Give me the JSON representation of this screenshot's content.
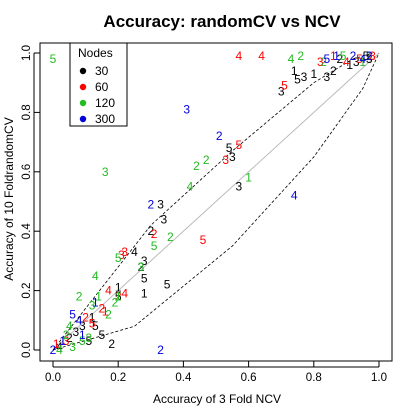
{
  "chart_data": {
    "type": "scatter",
    "title": "Accuracy: randomCV vs NCV",
    "xlabel": "Accuracy of 3 Fold NCV",
    "ylabel": "Accuracy of 10 FoldrandomCV",
    "xlim": [
      0,
      1
    ],
    "ylim": [
      0,
      1
    ],
    "xticks": [
      "0.0",
      "0.2",
      "0.4",
      "0.6",
      "0.8",
      "1.0"
    ],
    "yticks": [
      "0.0",
      "0.2",
      "0.4",
      "0.6",
      "0.8",
      "1.0"
    ],
    "grid": false,
    "marker": "text digit (1-5)",
    "reference_line": {
      "style": "solid",
      "color": "#bbbbbb",
      "from": [
        0,
        0
      ],
      "to": [
        1,
        1
      ]
    },
    "bounds": {
      "style": "dashed",
      "upper": [
        [
          0,
          0
        ],
        [
          0.3,
          0.42
        ],
        [
          0.55,
          0.67
        ],
        [
          0.8,
          0.9
        ],
        [
          0.92,
          0.98
        ],
        [
          0.98,
          1.0
        ]
      ],
      "lower": [
        [
          0,
          0
        ],
        [
          0.25,
          0.08
        ],
        [
          0.55,
          0.35
        ],
        [
          0.8,
          0.65
        ],
        [
          0.95,
          0.88
        ],
        [
          1.0,
          1.0
        ]
      ]
    },
    "legend": {
      "title": "Nodes",
      "placement": "top-left",
      "entries": [
        "30",
        "60",
        "120",
        "300"
      ]
    },
    "series": [
      {
        "name": "30",
        "color": "#000000",
        "points": [
          [
            0.54,
            0.68,
            "5"
          ],
          [
            0.55,
            0.65,
            "3"
          ],
          [
            0.57,
            0.55,
            "3"
          ],
          [
            0.33,
            0.49,
            "3"
          ],
          [
            0.34,
            0.44,
            "3"
          ],
          [
            0.3,
            0.4,
            "2"
          ],
          [
            0.25,
            0.33,
            "4"
          ],
          [
            0.28,
            0.3,
            "3"
          ],
          [
            0.27,
            0.28,
            "2"
          ],
          [
            0.28,
            0.24,
            "5"
          ],
          [
            0.35,
            0.22,
            "5"
          ],
          [
            0.2,
            0.21,
            "1"
          ],
          [
            0.2,
            0.18,
            "5"
          ],
          [
            0.28,
            0.19,
            "1"
          ],
          [
            0.12,
            0.11,
            "1"
          ],
          [
            0.13,
            0.08,
            "5"
          ],
          [
            0.15,
            0.05,
            "5"
          ],
          [
            0.07,
            0.06,
            "3"
          ],
          [
            0.05,
            0.04,
            "2"
          ],
          [
            0.02,
            0.01,
            "4"
          ],
          [
            0.18,
            0.02,
            "2"
          ],
          [
            0.11,
            0.03,
            "5"
          ],
          [
            0.09,
            0.08,
            "3"
          ],
          [
            0.7,
            0.87,
            "3"
          ],
          [
            0.74,
            0.94,
            "1"
          ],
          [
            0.75,
            0.91,
            "5"
          ],
          [
            0.77,
            0.92,
            "3"
          ],
          [
            0.8,
            0.93,
            "1"
          ],
          [
            0.84,
            0.92,
            "3"
          ],
          [
            0.86,
            0.94,
            "2"
          ],
          [
            0.91,
            0.96,
            "1"
          ],
          [
            0.93,
            0.97,
            "3"
          ],
          [
            0.96,
            0.99,
            "5"
          ],
          [
            0.88,
            0.98,
            "2"
          ],
          [
            0.97,
            0.98,
            "3"
          ]
        ]
      },
      {
        "name": "60",
        "color": "#ff0000",
        "points": [
          [
            0.57,
            0.99,
            "4"
          ],
          [
            0.64,
            0.99,
            "4"
          ],
          [
            0.71,
            0.89,
            "5"
          ],
          [
            0.57,
            0.69,
            "5"
          ],
          [
            0.53,
            0.64,
            "3"
          ],
          [
            0.31,
            0.39,
            "2"
          ],
          [
            0.46,
            0.37,
            "5"
          ],
          [
            0.22,
            0.33,
            "3"
          ],
          [
            0.21,
            0.32,
            "3"
          ],
          [
            0.2,
            0.18,
            "2"
          ],
          [
            0.22,
            0.19,
            "4"
          ],
          [
            0.17,
            0.2,
            "4"
          ],
          [
            0.15,
            0.14,
            "2"
          ],
          [
            0.16,
            0.13,
            "1"
          ],
          [
            0.12,
            0.09,
            "5"
          ],
          [
            0.1,
            0.11,
            "2"
          ],
          [
            0.04,
            0.03,
            "3"
          ],
          [
            0.01,
            0.02,
            "1"
          ],
          [
            0.82,
            0.97,
            "3"
          ],
          [
            0.86,
            0.99,
            "1"
          ],
          [
            0.9,
            0.97,
            "4"
          ],
          [
            0.94,
            0.98,
            "5"
          ],
          [
            0.98,
            0.99,
            "3"
          ]
        ]
      },
      {
        "name": "120",
        "color": "#22bb22",
        "points": [
          [
            0.0,
            0.98,
            "5"
          ],
          [
            0.16,
            0.6,
            "3"
          ],
          [
            0.47,
            0.64,
            "2"
          ],
          [
            0.44,
            0.62,
            "2"
          ],
          [
            0.6,
            0.58,
            "1"
          ],
          [
            0.42,
            0.55,
            "4"
          ],
          [
            0.36,
            0.38,
            "2"
          ],
          [
            0.31,
            0.35,
            "5"
          ],
          [
            0.2,
            0.31,
            "5"
          ],
          [
            0.27,
            0.28,
            "3"
          ],
          [
            0.13,
            0.25,
            "4"
          ],
          [
            0.19,
            0.16,
            "2"
          ],
          [
            0.2,
            0.18,
            "1"
          ],
          [
            0.14,
            0.18,
            "1"
          ],
          [
            0.08,
            0.18,
            "2"
          ],
          [
            0.12,
            0.15,
            "3"
          ],
          [
            0.05,
            0.08,
            "4"
          ],
          [
            0.04,
            0.05,
            "2"
          ],
          [
            0.09,
            0.03,
            "5"
          ],
          [
            0.06,
            0.01,
            "3"
          ],
          [
            0.11,
            0.04,
            "3"
          ],
          [
            0.02,
            0.0,
            "4"
          ],
          [
            0.17,
            0.12,
            "2"
          ],
          [
            0.73,
            0.98,
            "4"
          ],
          [
            0.76,
            0.99,
            "2"
          ],
          [
            0.83,
            0.97,
            "2"
          ],
          [
            0.89,
            0.99,
            "5"
          ],
          [
            0.95,
            0.97,
            "1"
          ],
          [
            0.97,
            0.99,
            "1"
          ]
        ]
      },
      {
        "name": "300",
        "color": "#0000dd",
        "points": [
          [
            0.41,
            0.81,
            "3"
          ],
          [
            0.51,
            0.72,
            "2"
          ],
          [
            0.3,
            0.49,
            "2"
          ],
          [
            0.33,
            0.0,
            "2"
          ],
          [
            0.74,
            0.52,
            "4"
          ],
          [
            0.13,
            0.16,
            "1"
          ],
          [
            0.06,
            0.12,
            "5"
          ],
          [
            0.08,
            0.1,
            "4"
          ],
          [
            0.03,
            0.03,
            "1"
          ],
          [
            0.0,
            0.0,
            "2"
          ],
          [
            0.09,
            0.05,
            "1"
          ],
          [
            0.84,
            0.98,
            "5"
          ],
          [
            0.87,
            0.99,
            "1"
          ],
          [
            0.92,
            0.99,
            "2"
          ],
          [
            0.95,
            0.98,
            "4"
          ],
          [
            0.97,
            0.99,
            "2"
          ]
        ]
      }
    ]
  }
}
